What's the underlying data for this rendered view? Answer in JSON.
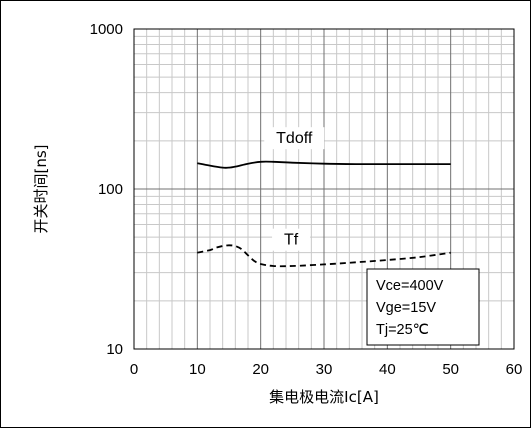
{
  "chart_data": {
    "type": "line",
    "title": "",
    "xlabel": "集电极电流Ic[A]",
    "ylabel": "开关时间[ns]",
    "xlim": [
      0,
      60
    ],
    "ylim": [
      10,
      1000
    ],
    "yscale": "log",
    "grid": true,
    "x_ticks": [
      "0",
      "10",
      "20",
      "30",
      "40",
      "50",
      "60"
    ],
    "y_ticks": [
      "10",
      "100",
      "1000"
    ],
    "series": [
      {
        "name": "Tdoff",
        "style": "solid",
        "color": "#000000",
        "x": [
          10,
          12,
          14,
          15,
          16,
          18,
          20,
          22,
          25,
          30,
          35,
          40,
          45,
          50
        ],
        "y": [
          145,
          140,
          136,
          136,
          138,
          144,
          148,
          148,
          146,
          144,
          143,
          143,
          143,
          143
        ]
      },
      {
        "name": "Tf",
        "style": "dashed",
        "color": "#000000",
        "x": [
          10,
          12,
          13,
          14,
          15,
          16,
          17,
          18,
          19,
          20,
          22,
          25,
          30,
          35,
          40,
          45,
          50
        ],
        "y": [
          40,
          41.5,
          43,
          44,
          44.5,
          44,
          42,
          38.5,
          35.5,
          34,
          33,
          33,
          33.8,
          34.8,
          36,
          37.5,
          40
        ]
      }
    ],
    "annotations": [
      "Vce=400V",
      "Vge=15V",
      "Tj=25℃"
    ]
  }
}
